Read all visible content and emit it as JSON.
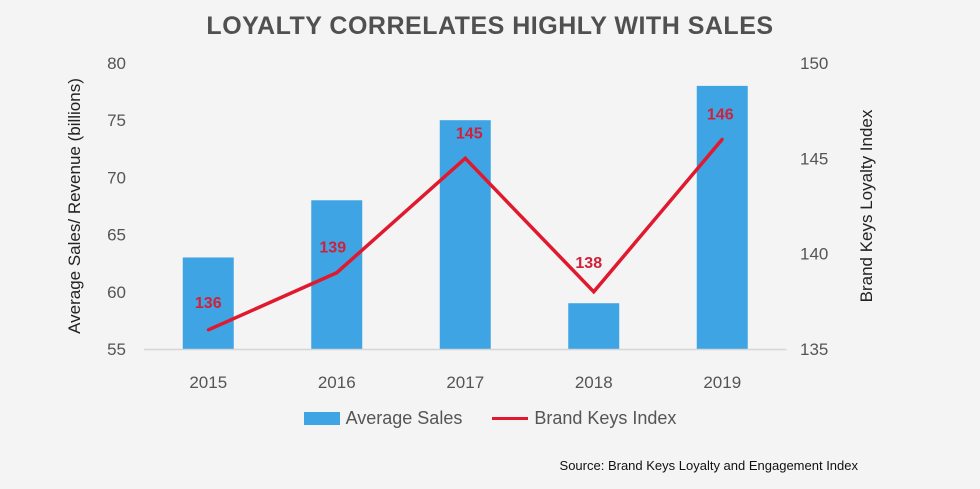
{
  "chart_data": {
    "type": "bar+line",
    "title": "LOYALTY CORRELATES HIGHLY WITH SALES",
    "categories": [
      "2015",
      "2016",
      "2017",
      "2018",
      "2019"
    ],
    "series": [
      {
        "name": "Average Sales",
        "type": "bar",
        "axis": "left",
        "values": [
          63,
          68,
          75,
          59,
          78
        ],
        "color": "#3ea4e3"
      },
      {
        "name": "Brand Keys Index",
        "type": "line",
        "axis": "right",
        "values": [
          136,
          139,
          145,
          138,
          146
        ],
        "color": "#e0192e",
        "data_labels": [
          "136",
          "139",
          "145",
          "138",
          "146"
        ]
      }
    ],
    "ylabel": "Average Sales/ Revenue (billions)",
    "ylim": [
      55,
      80
    ],
    "yticks": [
      "55",
      "60",
      "65",
      "70",
      "75",
      "80"
    ],
    "y2label": "Brand Keys Loyalty Index",
    "y2lim": [
      135,
      150
    ],
    "y2ticks": [
      "135",
      "140",
      "145",
      "150"
    ],
    "grid": false,
    "legend": "bottom",
    "source": "Source: Brand Keys Loyalty and Engagement Index"
  }
}
